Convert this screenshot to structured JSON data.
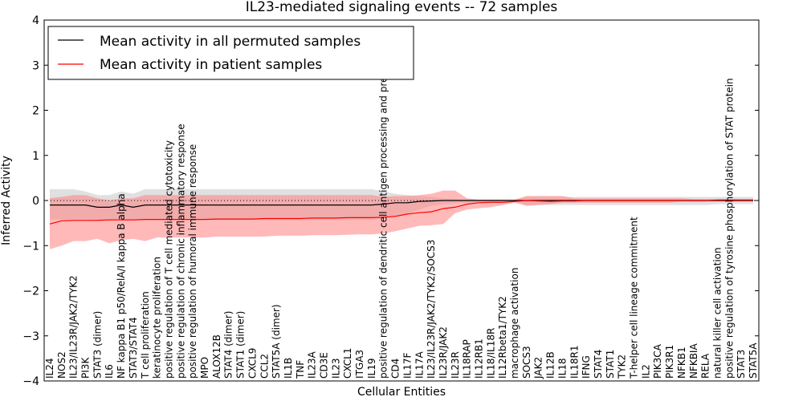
{
  "chart_data": {
    "type": "line",
    "title": "IL23-mediated signaling events -- 72 samples",
    "xlabel": "Cellular Entities",
    "ylabel": "Inferred Activity",
    "ylim": [
      -4,
      4
    ],
    "yticks": [
      -4,
      -3,
      -2,
      -1,
      0,
      1,
      2,
      3,
      4
    ],
    "grid": false,
    "legend_position": "top-left",
    "colors": {
      "permuted": "#000000",
      "patient": "#ff0000",
      "permuted_band": "#cccccc",
      "patient_band": "#ff7f7f"
    },
    "categories": [
      "IL24",
      "NOS2",
      "IL23/IL23R/JAK2/TYK2",
      "PI3K",
      "STAT3 (dimer)",
      "IL6",
      "NF kappa B1 p50/RelA/I kappa B alpha",
      "STAT3/STAT4",
      "T cell proliferation",
      "keratinocyte proliferation",
      "positive regulation of T cell mediated cytotoxicity",
      "positive regulation of chronic inflammatory response",
      "positive regulation of humoral immune response",
      "MPO",
      "ALOX12B",
      "STAT4 (dimer)",
      "STAT1 (dimer)",
      "CXCL9",
      "CCL2",
      "STAT5A (dimer)",
      "IL1B",
      "TNF",
      "IL23A",
      "CD3E",
      "IL23",
      "CXCL1",
      "ITGA3",
      "IL19",
      "positive regulation of dendritic cell antigen processing and presentation",
      "CD4",
      "IL17F",
      "IL17A",
      "IL23/IL23R/JAK2/TYK2/SOCS3",
      "IL23R/JAK2",
      "IL23R",
      "IL18RAP",
      "IL12RB1",
      "IL18/IL18R",
      "IL12Rbeta1/TYK2",
      "macrophage activation",
      "SOCS3",
      "JAK2",
      "IL12B",
      "IL18",
      "IL18R1",
      "IFNG",
      "STAT4",
      "STAT1",
      "TYK2",
      "T-helper cell lineage commitment",
      "IL2",
      "PIK3CA",
      "PIK3R1",
      "NFKB1",
      "NFKBIA",
      "RELA",
      "natural killer cell activation",
      "positive regulation of tyrosine phosphorylation of STAT protein",
      "STAT3",
      "STAT5A"
    ],
    "series": [
      {
        "name": "Mean activity in all permuted samples",
        "values": [
          -0.1,
          -0.1,
          -0.1,
          -0.1,
          -0.15,
          -0.15,
          -0.1,
          -0.15,
          -0.1,
          -0.1,
          -0.1,
          -0.1,
          -0.1,
          -0.1,
          -0.1,
          -0.1,
          -0.1,
          -0.1,
          -0.1,
          -0.1,
          -0.1,
          -0.1,
          -0.1,
          -0.1,
          -0.1,
          -0.1,
          -0.1,
          -0.1,
          -0.08,
          -0.05,
          -0.05,
          -0.02,
          -0.01,
          0,
          0,
          0,
          0,
          0,
          0,
          0,
          0,
          0,
          0,
          0,
          0,
          0,
          0,
          0,
          0,
          0,
          0,
          0,
          0,
          0,
          0,
          0,
          0,
          0,
          0,
          0
        ],
        "lower": [
          -0.42,
          -0.42,
          -0.42,
          -0.42,
          -0.45,
          -0.45,
          -0.43,
          -0.45,
          -0.43,
          -0.43,
          -0.43,
          -0.43,
          -0.43,
          -0.43,
          -0.43,
          -0.43,
          -0.43,
          -0.43,
          -0.43,
          -0.43,
          -0.43,
          -0.43,
          -0.43,
          -0.43,
          -0.43,
          -0.43,
          -0.43,
          -0.43,
          -0.4,
          -0.35,
          -0.3,
          -0.2,
          -0.12,
          -0.08,
          -0.06,
          -0.05,
          -0.05,
          -0.05,
          -0.03,
          -0.02,
          -0.1,
          -0.1,
          -0.1,
          -0.1,
          -0.1,
          -0.1,
          -0.1,
          -0.1,
          -0.1,
          -0.1,
          -0.1,
          -0.1,
          -0.1,
          -0.1,
          -0.1,
          -0.1,
          -0.08,
          -0.08,
          -0.08,
          -0.08
        ],
        "upper": [
          0.25,
          0.25,
          0.25,
          0.2,
          0.12,
          0.12,
          0.2,
          0.15,
          0.25,
          0.25,
          0.25,
          0.25,
          0.25,
          0.25,
          0.25,
          0.25,
          0.25,
          0.25,
          0.25,
          0.25,
          0.25,
          0.25,
          0.25,
          0.25,
          0.25,
          0.25,
          0.25,
          0.25,
          0.2,
          0.15,
          0.12,
          0.1,
          0.08,
          0.05,
          0.03,
          0.02,
          0.02,
          0.02,
          0.02,
          0.02,
          0.08,
          0.08,
          0.08,
          0.08,
          0.08,
          0.08,
          0.08,
          0.08,
          0.08,
          0.08,
          0.08,
          0.08,
          0.08,
          0.08,
          0.08,
          0.08,
          0.08,
          0.08,
          0.08,
          0.08
        ]
      },
      {
        "name": "Mean activity in patient samples",
        "values": [
          -0.52,
          -0.45,
          -0.44,
          -0.44,
          -0.44,
          -0.43,
          -0.43,
          -0.43,
          -0.42,
          -0.42,
          -0.42,
          -0.42,
          -0.42,
          -0.42,
          -0.41,
          -0.41,
          -0.41,
          -0.41,
          -0.4,
          -0.4,
          -0.4,
          -0.4,
          -0.39,
          -0.39,
          -0.39,
          -0.38,
          -0.38,
          -0.38,
          -0.37,
          -0.35,
          -0.3,
          -0.27,
          -0.25,
          -0.18,
          -0.15,
          -0.08,
          -0.05,
          -0.04,
          -0.04,
          -0.02,
          0,
          -0.01,
          -0.02,
          -0.01,
          -0.01,
          0,
          0,
          0,
          0,
          0,
          0,
          0,
          0,
          0,
          0,
          0,
          0.01,
          0.01,
          0.01,
          0.01
        ],
        "lower": [
          -1.08,
          -1.0,
          -0.9,
          -0.9,
          -0.85,
          -0.95,
          -0.88,
          -0.85,
          -0.9,
          -0.82,
          -0.82,
          -0.82,
          -0.82,
          -0.82,
          -0.8,
          -0.8,
          -0.8,
          -0.8,
          -0.8,
          -0.78,
          -0.78,
          -0.78,
          -0.77,
          -0.77,
          -0.77,
          -0.76,
          -0.75,
          -0.75,
          -0.73,
          -0.68,
          -0.62,
          -0.56,
          -0.55,
          -0.52,
          -0.28,
          -0.2,
          -0.17,
          -0.15,
          -0.1,
          -0.05,
          -0.12,
          -0.1,
          -0.08,
          -0.05,
          -0.05,
          -0.05,
          -0.05,
          -0.05,
          -0.05,
          -0.05,
          -0.05,
          -0.05,
          -0.05,
          -0.03,
          -0.03,
          -0.03,
          -0.02,
          -0.02,
          -0.02,
          -0.02
        ],
        "upper": [
          0.05,
          0.08,
          0.12,
          0.12,
          0.05,
          0.0,
          0.05,
          0.05,
          0.12,
          0.12,
          0.12,
          0.12,
          0.12,
          0.12,
          0.12,
          0.12,
          0.12,
          0.12,
          0.12,
          0.12,
          0.12,
          0.12,
          0.12,
          0.12,
          0.12,
          0.12,
          0.12,
          0.12,
          0.08,
          0.1,
          0.1,
          0.12,
          0.15,
          0.22,
          0.22,
          0.05,
          0.02,
          0.02,
          0.02,
          0.02,
          0.1,
          0.1,
          0.1,
          0.1,
          0.05,
          0.05,
          0.05,
          0.05,
          0.05,
          0.05,
          0.05,
          0.05,
          0.05,
          0.05,
          0.03,
          0.03,
          0.03,
          0.03,
          0.03,
          0.03
        ]
      }
    ]
  }
}
